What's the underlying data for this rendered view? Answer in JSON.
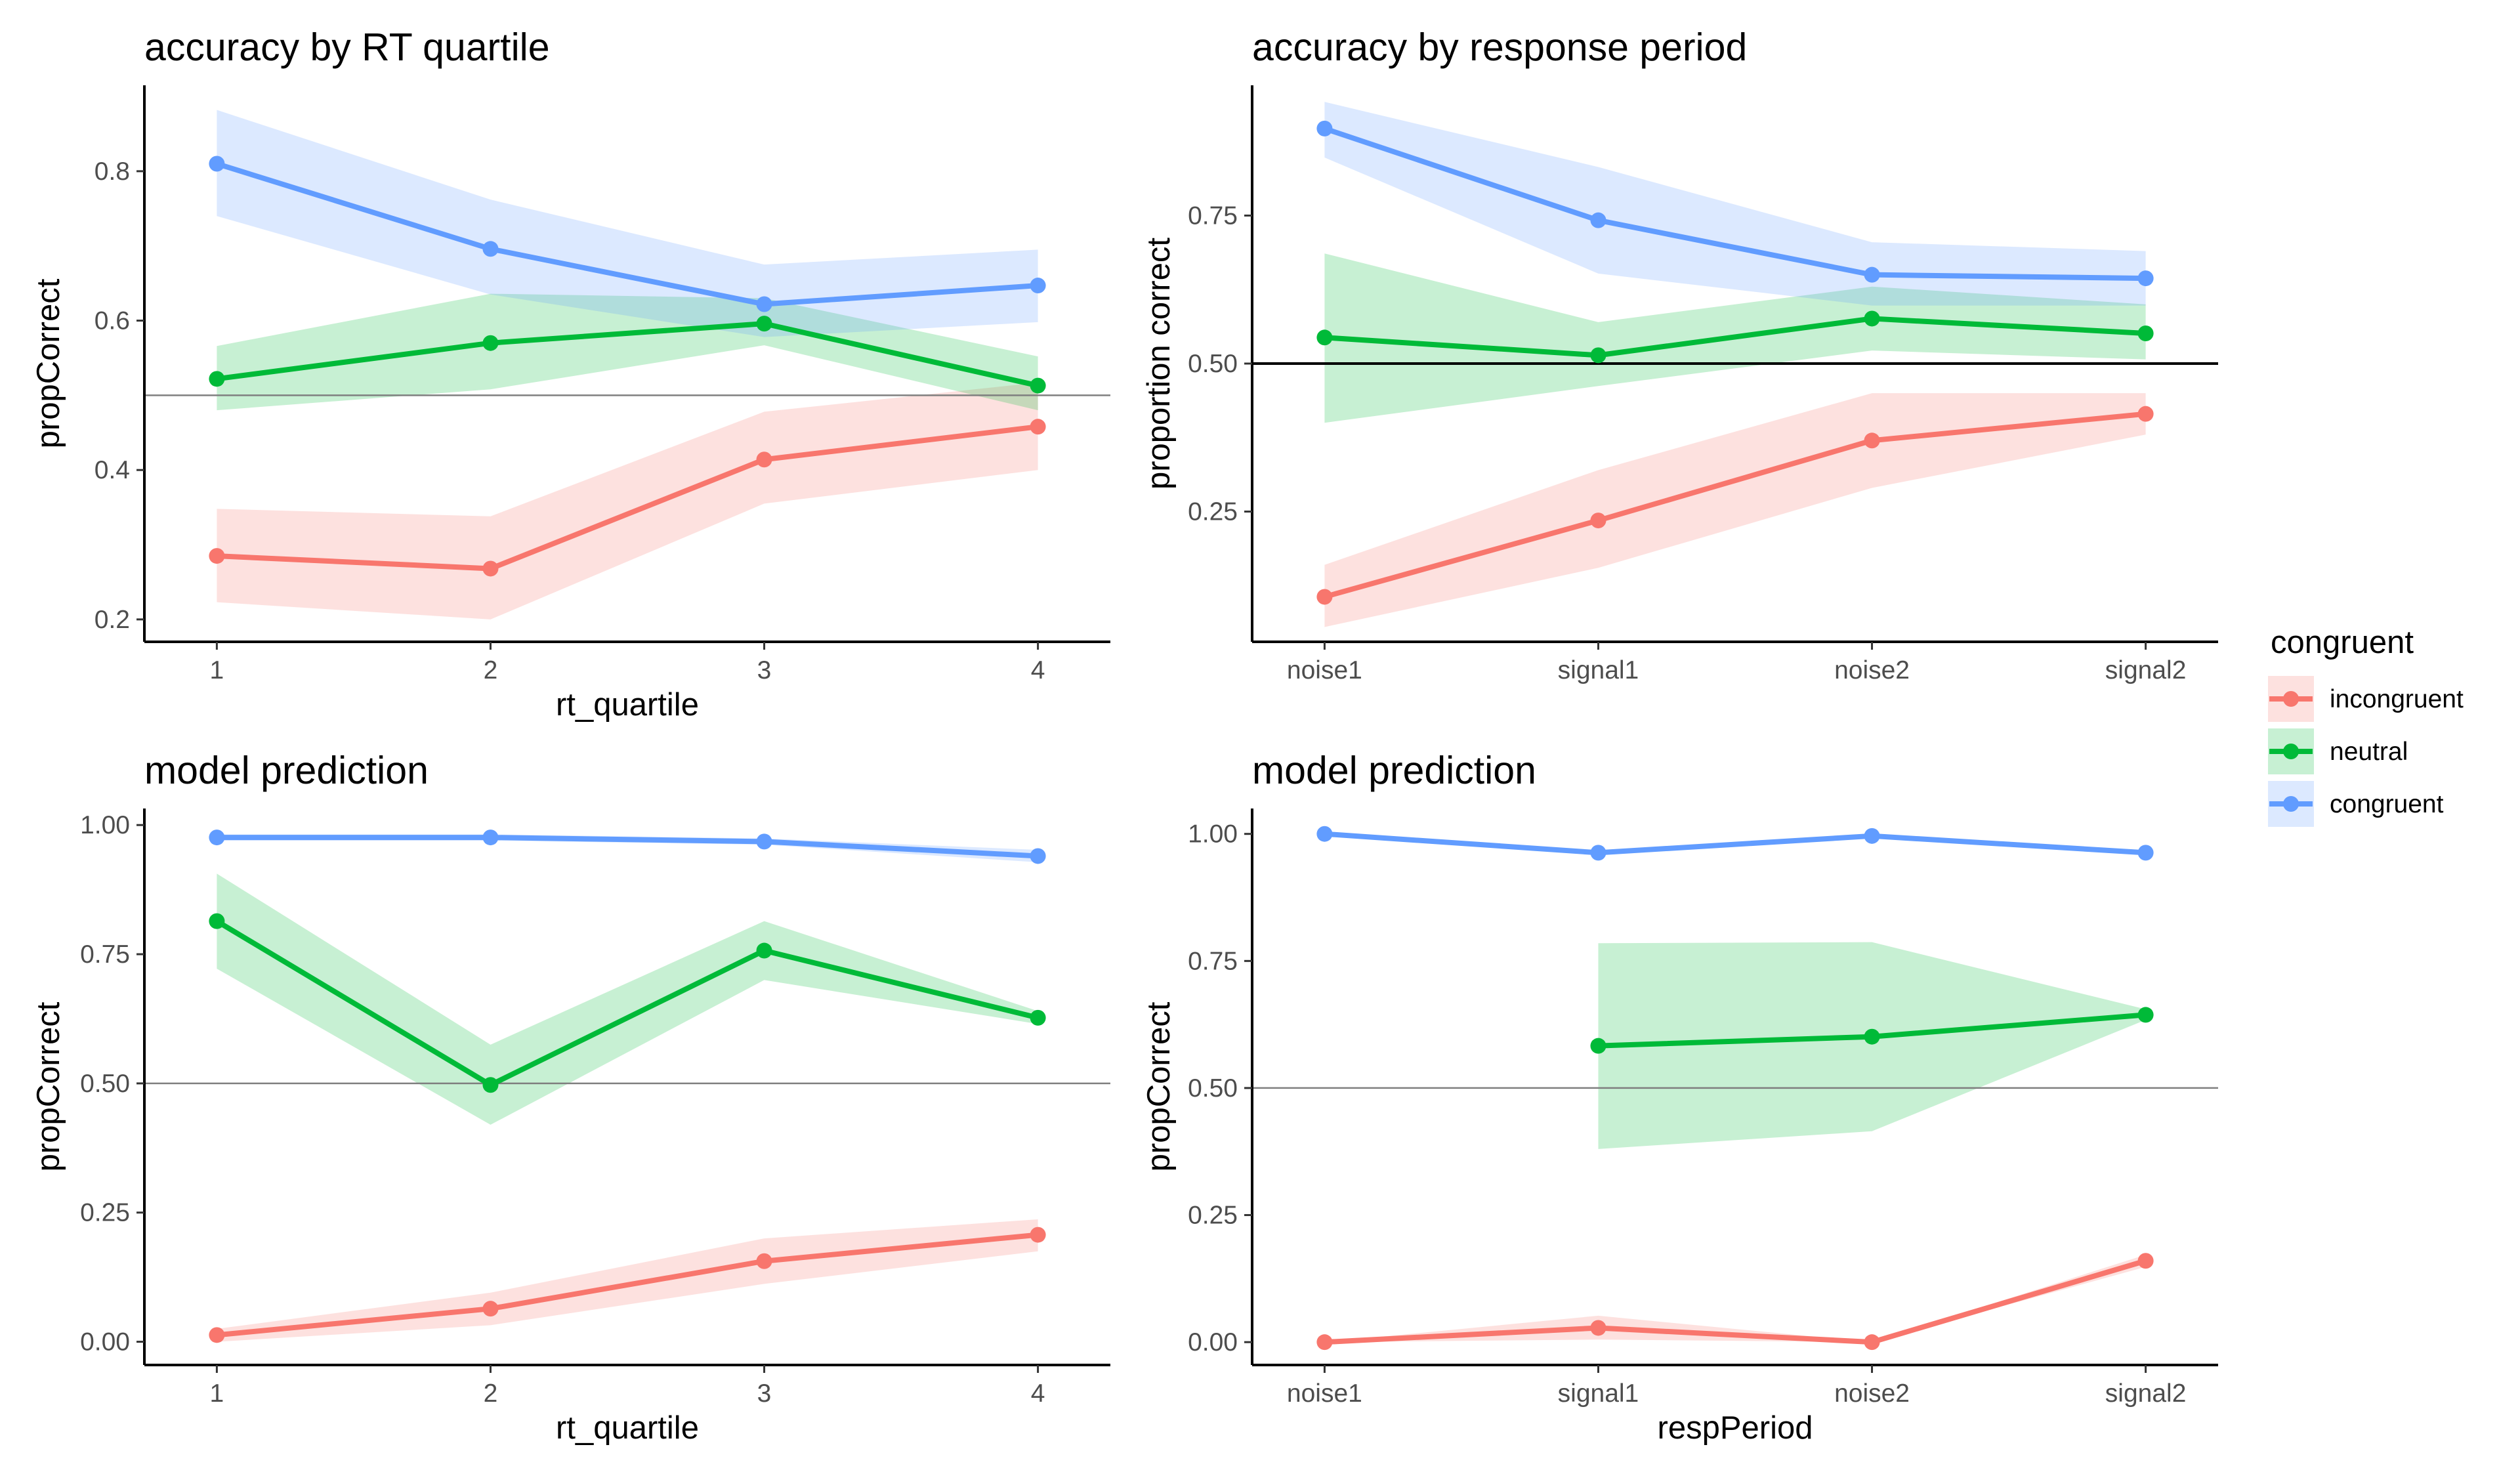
{
  "colors": {
    "incongruent": "#F8766D",
    "neutral": "#00BA38",
    "congruent": "#619CFF"
  },
  "legend": {
    "title": "congruent",
    "items": [
      {
        "key": "incongruent",
        "label": "incongruent"
      },
      {
        "key": "neutral",
        "label": "neutral"
      },
      {
        "key": "congruent",
        "label": "congruent"
      }
    ]
  },
  "chart_data": [
    {
      "type": "line",
      "title": "accuracy by RT quartile",
      "xlabel": "rt_quartile",
      "ylabel": "propCorrect",
      "categories": [
        "1",
        "2",
        "3",
        "4"
      ],
      "ylim": [
        0.17,
        0.915
      ],
      "yticks": [
        0.2,
        0.4,
        0.6,
        0.8
      ],
      "ytick_labels": [
        "0.2",
        "0.4",
        "0.6",
        "0.8"
      ],
      "hline": {
        "y": 0.5,
        "style": "thin-grey"
      },
      "series": [
        {
          "name": "incongruent",
          "values": [
            0.285,
            0.268,
            0.414,
            0.458
          ],
          "lower": [
            0.223,
            0.2,
            0.355,
            0.4
          ],
          "upper": [
            0.348,
            0.338,
            0.478,
            0.517
          ]
        },
        {
          "name": "neutral",
          "values": [
            0.522,
            0.57,
            0.596,
            0.513
          ],
          "lower": [
            0.48,
            0.508,
            0.567,
            0.48
          ],
          "upper": [
            0.566,
            0.636,
            0.63,
            0.552
          ]
        },
        {
          "name": "congruent",
          "values": [
            0.81,
            0.696,
            0.622,
            0.647
          ],
          "lower": [
            0.74,
            0.635,
            0.578,
            0.598
          ],
          "upper": [
            0.882,
            0.762,
            0.675,
            0.695
          ]
        }
      ]
    },
    {
      "type": "line",
      "title": "accuracy by response period",
      "xlabel": "",
      "ylabel": "proportion correct",
      "categories": [
        "noise1",
        "signal1",
        "noise2",
        "signal2"
      ],
      "ylim": [
        0.03,
        0.97
      ],
      "yticks": [
        0.25,
        0.5,
        0.75
      ],
      "ytick_labels": [
        "0.25",
        "0.50",
        "0.75"
      ],
      "hline": {
        "y": 0.5,
        "style": "solid-black"
      },
      "series": [
        {
          "name": "incongruent",
          "values": [
            0.106,
            0.235,
            0.37,
            0.415
          ],
          "lower": [
            0.055,
            0.155,
            0.29,
            0.38
          ],
          "upper": [
            0.16,
            0.32,
            0.45,
            0.45
          ]
        },
        {
          "name": "neutral",
          "values": [
            0.544,
            0.514,
            0.576,
            0.551
          ],
          "lower": [
            0.4,
            0.462,
            0.522,
            0.507
          ],
          "upper": [
            0.686,
            0.57,
            0.63,
            0.6
          ]
        },
        {
          "name": "congruent",
          "values": [
            0.897,
            0.742,
            0.65,
            0.644
          ],
          "lower": [
            0.848,
            0.652,
            0.598,
            0.598
          ],
          "upper": [
            0.942,
            0.832,
            0.705,
            0.69
          ]
        }
      ]
    },
    {
      "type": "line",
      "title": "model prediction",
      "xlabel": "rt_quartile",
      "ylabel": "propCorrect",
      "categories": [
        "1",
        "2",
        "3",
        "4"
      ],
      "ylim": [
        -0.045,
        1.032
      ],
      "yticks": [
        0,
        0.25,
        0.5,
        0.75,
        1.0
      ],
      "ytick_labels": [
        "0.00",
        "0.25",
        "0.50",
        "0.75",
        "1.00"
      ],
      "hline": {
        "y": 0.5,
        "style": "thin-grey"
      },
      "series": [
        {
          "name": "incongruent",
          "values": [
            0.013,
            0.064,
            0.156,
            0.207
          ],
          "lower": [
            0.0,
            0.032,
            0.112,
            0.175
          ],
          "upper": [
            0.025,
            0.095,
            0.2,
            0.237
          ]
        },
        {
          "name": "neutral",
          "values": [
            0.814,
            0.497,
            0.757,
            0.627
          ],
          "lower": [
            0.722,
            0.42,
            0.7,
            0.615
          ],
          "upper": [
            0.906,
            0.575,
            0.814,
            0.64
          ]
        },
        {
          "name": "congruent",
          "values": [
            0.976,
            0.976,
            0.968,
            0.94
          ],
          "lower": [
            0.97,
            0.97,
            0.962,
            0.928
          ],
          "upper": [
            0.982,
            0.982,
            0.974,
            0.952
          ]
        }
      ]
    },
    {
      "type": "line",
      "title": "model prediction",
      "xlabel": "respPeriod",
      "ylabel": "propCorrect",
      "categories": [
        "noise1",
        "signal1",
        "noise2",
        "signal2"
      ],
      "ylim": [
        -0.045,
        1.05
      ],
      "yticks": [
        0,
        0.25,
        0.5,
        0.75,
        1.0
      ],
      "ytick_labels": [
        "0.00",
        "0.25",
        "0.50",
        "0.75",
        "1.00"
      ],
      "hline": {
        "y": 0.5,
        "style": "thin-grey"
      },
      "series": [
        {
          "name": "incongruent",
          "values": [
            0.0,
            0.028,
            0.0,
            0.16
          ],
          "lower": [
            0.0,
            0.005,
            0.0,
            0.148
          ],
          "upper": [
            0.0,
            0.052,
            0.0,
            0.172
          ]
        },
        {
          "name": "neutral",
          "values": [
            null,
            0.583,
            0.601,
            0.644
          ],
          "lower": [
            null,
            0.38,
            0.415,
            0.634
          ],
          "upper": [
            null,
            0.785,
            0.787,
            0.655
          ]
        },
        {
          "name": "congruent",
          "values": [
            1.0,
            0.963,
            0.996,
            0.963
          ],
          "lower": [
            1.0,
            0.958,
            0.993,
            0.958
          ],
          "upper": [
            1.0,
            0.968,
            0.999,
            0.968
          ]
        }
      ]
    }
  ]
}
